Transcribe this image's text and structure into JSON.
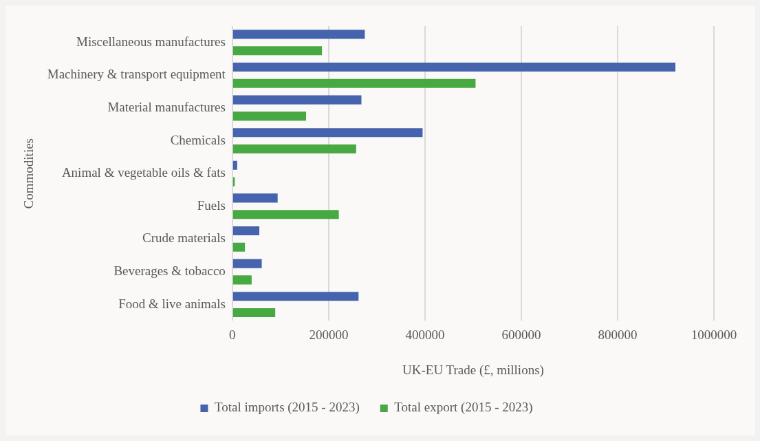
{
  "chart_data": {
    "type": "bar",
    "orientation": "horizontal",
    "xlabel": "UK-EU Trade (£, millions)",
    "ylabel": "Commodities",
    "categories": [
      "Miscellaneous manufactures",
      "Machinery & transport equipment",
      "Material manufactures",
      "Chemicals",
      "Animal & vegetable oils & fats",
      "Fuels",
      "Crude materials",
      "Beverages & tobacco",
      "Food & live animals"
    ],
    "series": [
      {
        "name": "Total imports (2015 - 2023)",
        "color": "#4664ad",
        "values": [
          275000,
          920000,
          268000,
          395000,
          10000,
          94000,
          56000,
          61000,
          262000
        ]
      },
      {
        "name": "Total export (2015 - 2023)",
        "color": "#46a941",
        "values": [
          186000,
          505000,
          153000,
          257000,
          5000,
          221000,
          26000,
          40000,
          89000
        ]
      }
    ],
    "xlim": [
      0,
      1000000
    ],
    "xticks": [
      0,
      200000,
      400000,
      600000,
      800000,
      1000000
    ],
    "grid": "x",
    "legend": "bottom"
  }
}
